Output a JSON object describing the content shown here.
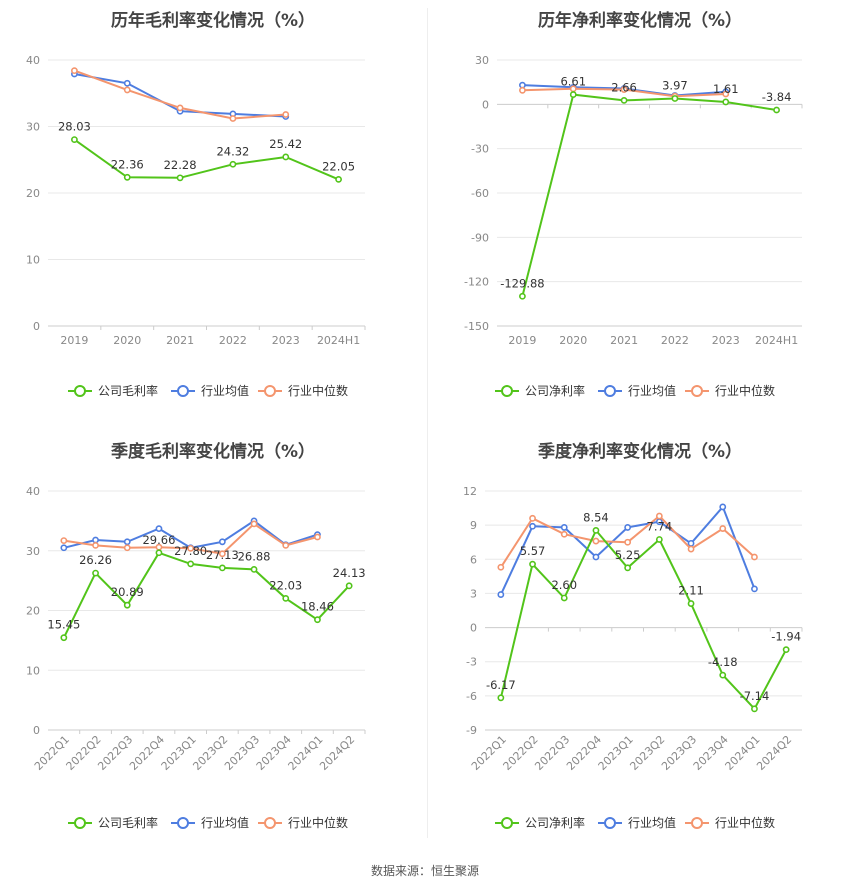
{
  "source_note": "数据来源：恒生聚源",
  "colors": {
    "company": "#52c41a",
    "avg": "#4e7de0",
    "median": "#f4956e",
    "grid": "#e8e8e8",
    "axis_text": "#888888",
    "title": "#444444"
  },
  "chart_data": [
    {
      "type": "line",
      "title": "历年毛利率变化情况（%）",
      "categories": [
        "2019",
        "2020",
        "2021",
        "2022",
        "2023",
        "2024H1"
      ],
      "ylim": [
        0,
        40
      ],
      "yticks": [
        0,
        10,
        20,
        30,
        40
      ],
      "series": [
        {
          "name": "公司毛利率",
          "role": "company",
          "values": [
            28.03,
            22.36,
            22.28,
            24.32,
            25.42,
            22.05
          ],
          "labels": [
            "28.03",
            "22.36",
            "22.28",
            "24.32",
            "25.42",
            "22.05"
          ]
        },
        {
          "name": "行业均值",
          "role": "avg",
          "values": [
            37.9,
            36.5,
            32.3,
            31.9,
            31.5,
            null
          ]
        },
        {
          "name": "行业中位数",
          "role": "median",
          "values": [
            38.4,
            35.5,
            32.8,
            31.2,
            31.8,
            null
          ]
        }
      ],
      "legend_position": "bottom"
    },
    {
      "type": "line",
      "title": "历年净利率变化情况（%）",
      "categories": [
        "2019",
        "2020",
        "2021",
        "2022",
        "2023",
        "2024H1"
      ],
      "ylim": [
        -150,
        30
      ],
      "yticks": [
        -150,
        -120,
        -90,
        -60,
        -30,
        0,
        30
      ],
      "series": [
        {
          "name": "公司净利率",
          "role": "company",
          "values": [
            -129.88,
            6.61,
            2.66,
            3.97,
            1.61,
            -3.84
          ],
          "labels": [
            "-129.88",
            "6.61",
            "2.66",
            "3.97",
            "1.61",
            "-3.84"
          ]
        },
        {
          "name": "行业均值",
          "role": "avg",
          "values": [
            13.0,
            11.5,
            10.7,
            6.0,
            8.5,
            null
          ]
        },
        {
          "name": "行业中位数",
          "role": "median",
          "values": [
            9.5,
            10.5,
            10.0,
            5.5,
            7.0,
            null
          ]
        }
      ],
      "legend_position": "bottom"
    },
    {
      "type": "line",
      "title": "季度毛利率变化情况（%）",
      "categories": [
        "2022Q1",
        "2022Q2",
        "2022Q3",
        "2022Q4",
        "2023Q1",
        "2023Q2",
        "2023Q3",
        "2023Q4",
        "2024Q1",
        "2024Q2"
      ],
      "ylim": [
        0,
        40
      ],
      "yticks": [
        0,
        10,
        20,
        30,
        40
      ],
      "series": [
        {
          "name": "公司毛利率",
          "role": "company",
          "values": [
            15.45,
            26.26,
            20.89,
            29.66,
            27.8,
            27.13,
            26.88,
            22.03,
            18.46,
            24.13
          ],
          "labels": [
            "15.45",
            "26.26",
            "20.89",
            "29.66",
            "27.80",
            "27.13",
            "26.88",
            "22.03",
            "18.46",
            "24.13"
          ]
        },
        {
          "name": "行业均值",
          "role": "avg",
          "values": [
            30.5,
            31.8,
            31.5,
            33.7,
            30.5,
            31.5,
            35.0,
            31.0,
            32.7,
            null
          ]
        },
        {
          "name": "行业中位数",
          "role": "median",
          "values": [
            31.7,
            30.9,
            30.5,
            30.6,
            30.4,
            29.5,
            34.5,
            30.9,
            32.3,
            null
          ]
        }
      ],
      "legend_position": "bottom"
    },
    {
      "type": "line",
      "title": "季度净利率变化情况（%）",
      "categories": [
        "2022Q1",
        "2022Q2",
        "2022Q3",
        "2022Q4",
        "2023Q1",
        "2023Q2",
        "2023Q3",
        "2023Q4",
        "2024Q1",
        "2024Q2"
      ],
      "ylim": [
        -9,
        12
      ],
      "yticks": [
        -9,
        -6,
        -3,
        0,
        3,
        6,
        9,
        12
      ],
      "series": [
        {
          "name": "公司净利率",
          "role": "company",
          "values": [
            -6.17,
            5.57,
            2.6,
            8.54,
            5.25,
            7.74,
            2.11,
            -4.18,
            -7.14,
            -1.94
          ],
          "labels": [
            "-6.17",
            "5.57",
            "2.60",
            "8.54",
            "5.25",
            "7.74",
            "2.11",
            "-4.18",
            "-7.14",
            "-1.94"
          ]
        },
        {
          "name": "行业均值",
          "role": "avg",
          "values": [
            2.9,
            8.9,
            8.8,
            6.2,
            8.8,
            9.3,
            7.4,
            10.6,
            3.4,
            null
          ]
        },
        {
          "name": "行业中位数",
          "role": "median",
          "values": [
            5.3,
            9.6,
            8.2,
            7.6,
            7.5,
            9.8,
            6.9,
            8.7,
            6.2,
            null
          ]
        }
      ],
      "legend_position": "bottom"
    }
  ]
}
